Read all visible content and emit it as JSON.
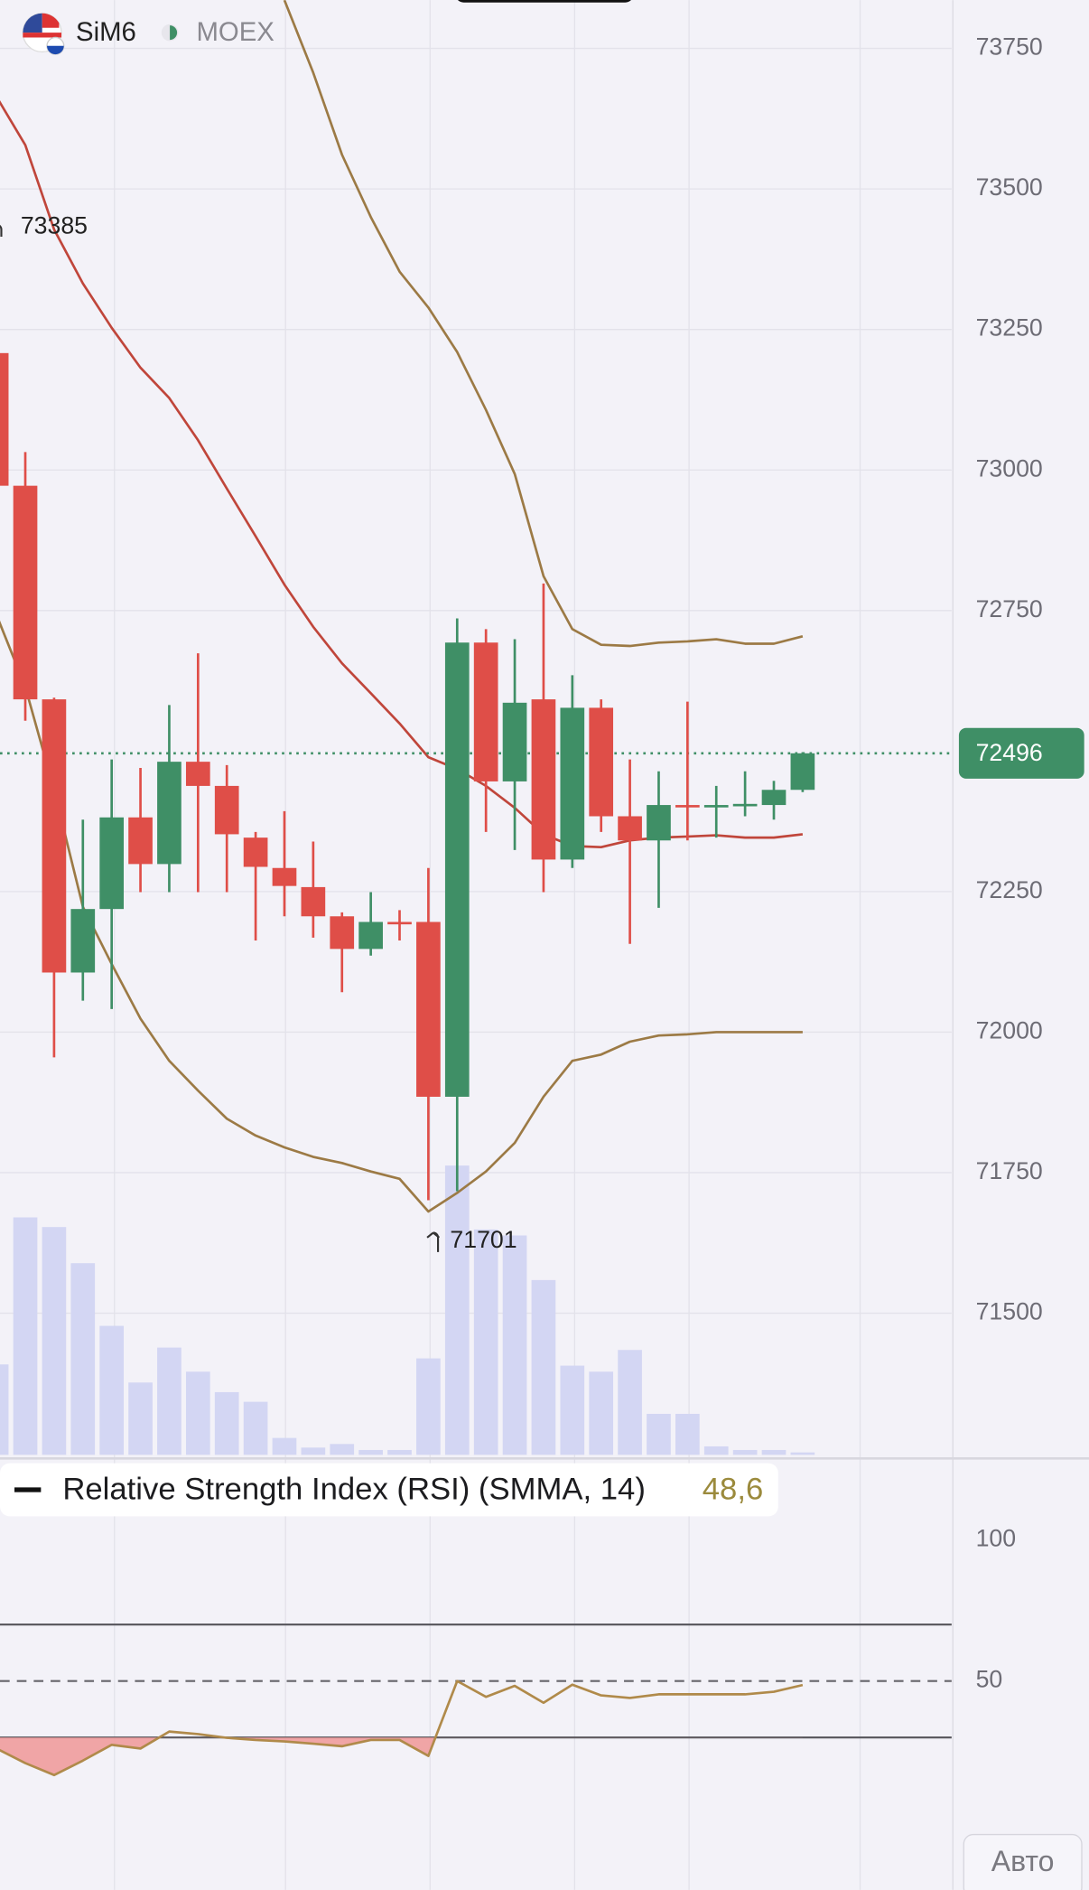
{
  "header": {
    "symbol": "SiM6",
    "exchange": "MOEX"
  },
  "ui": {
    "scale_button": "Авто"
  },
  "chart_data": [
    {
      "type": "candlestick",
      "open": [
        73208,
        72972,
        72592,
        72106,
        72219,
        72382,
        72299,
        72481,
        72438,
        72346,
        72292,
        72258,
        72206,
        72148,
        72196,
        72196,
        71885,
        72693,
        72446,
        72592,
        72307,
        72577,
        72384,
        72341,
        72404,
        72402,
        72402,
        72404,
        72431
      ],
      "high": [
        73385,
        73032,
        72595,
        72378,
        72485,
        72470,
        72582,
        72674,
        72475,
        72356,
        72393,
        72339,
        72213,
        72249,
        72217,
        72292,
        72736,
        72717,
        72699,
        72798,
        72635,
        72592,
        72485,
        72464,
        72588,
        72438,
        72464,
        72447,
        72498
      ],
      "low": [
        72850,
        72554,
        71955,
        72056,
        72041,
        72249,
        72249,
        72249,
        72249,
        72163,
        72206,
        72168,
        72071,
        72136,
        72163,
        71701,
        71717,
        72356,
        72324,
        72249,
        72292,
        72356,
        72157,
        72221,
        72341,
        72346,
        72384,
        72378,
        72427
      ],
      "close": [
        72972,
        72592,
        72106,
        72219,
        72382,
        72299,
        72481,
        72438,
        72352,
        72294,
        72260,
        72206,
        72148,
        72196,
        72194,
        71885,
        72693,
        72446,
        72586,
        72307,
        72577,
        72384,
        72341,
        72404,
        72402,
        72404,
        72406,
        72431,
        72496
      ],
      "volume": [
        75,
        197,
        189,
        159,
        107,
        60,
        89,
        69,
        52,
        44,
        14,
        6,
        9,
        4,
        4,
        80,
        240,
        187,
        182,
        145,
        74,
        69,
        87,
        34,
        34,
        7,
        4,
        4,
        2
      ],
      "up_color": "#3f8f66",
      "down_color": "#df4e48",
      "volume_color": "#d3d6f3",
      "series": [
        {
          "color": "#9c7a45",
          "values": [
            null,
            null,
            null,
            null,
            null,
            null,
            null,
            null,
            null,
            null,
            73836,
            73707,
            73561,
            73450,
            73353,
            73289,
            73210,
            73107,
            72993,
            72811,
            72717,
            72689,
            72687,
            72693,
            72695,
            72699,
            72691,
            72691,
            72704
          ]
        },
        {
          "color": "#c0463b",
          "values": [
            73664,
            73578,
            73428,
            73332,
            73253,
            73182,
            73128,
            73053,
            72967,
            72882,
            72796,
            72721,
            72656,
            72603,
            72549,
            72489,
            72468,
            72438,
            72399,
            72352,
            72331,
            72329,
            72341,
            72346,
            72348,
            72350,
            72346,
            72346,
            72352
          ]
        },
        {
          "color": "#9c7a45",
          "values": [
            72742,
            72614,
            72431,
            72223,
            72121,
            72024,
            71949,
            71896,
            71846,
            71816,
            71795,
            71778,
            71767,
            71752,
            71739,
            71681,
            71714,
            71752,
            71803,
            71885,
            71949,
            71960,
            71983,
            71994,
            71996,
            72000,
            72000,
            72000,
            72000
          ]
        }
      ],
      "current_price": 72496,
      "max_label": 73385,
      "min_label": 71701,
      "ylim": [
        71248,
        73836
      ],
      "yticks": [
        73750,
        73500,
        73250,
        73000,
        72750,
        72250,
        72000,
        71750,
        71500
      ],
      "grid": true
    },
    {
      "type": "line",
      "title": "Relative Strength Index (RSI) (SMMA, 14)",
      "legend_value": "48,6",
      "color": "#b08a4a",
      "fill_color": "#f09c9c",
      "values": [
        26.1,
        20.9,
        16.7,
        21.8,
        27.4,
        26.1,
        32.1,
        31.2,
        29.9,
        29.1,
        28.6,
        27.8,
        26.9,
        29.1,
        29.1,
        23.5,
        50.0,
        44.4,
        48.3,
        42.3,
        48.7,
        44.9,
        44.0,
        45.3,
        45.3,
        45.3,
        45.3,
        46.2,
        48.6
      ],
      "levels": [
        70,
        30
      ],
      "dashed_levels": [
        50
      ],
      "ylim": [
        -24,
        128
      ],
      "yticks": [
        100,
        50
      ]
    }
  ]
}
